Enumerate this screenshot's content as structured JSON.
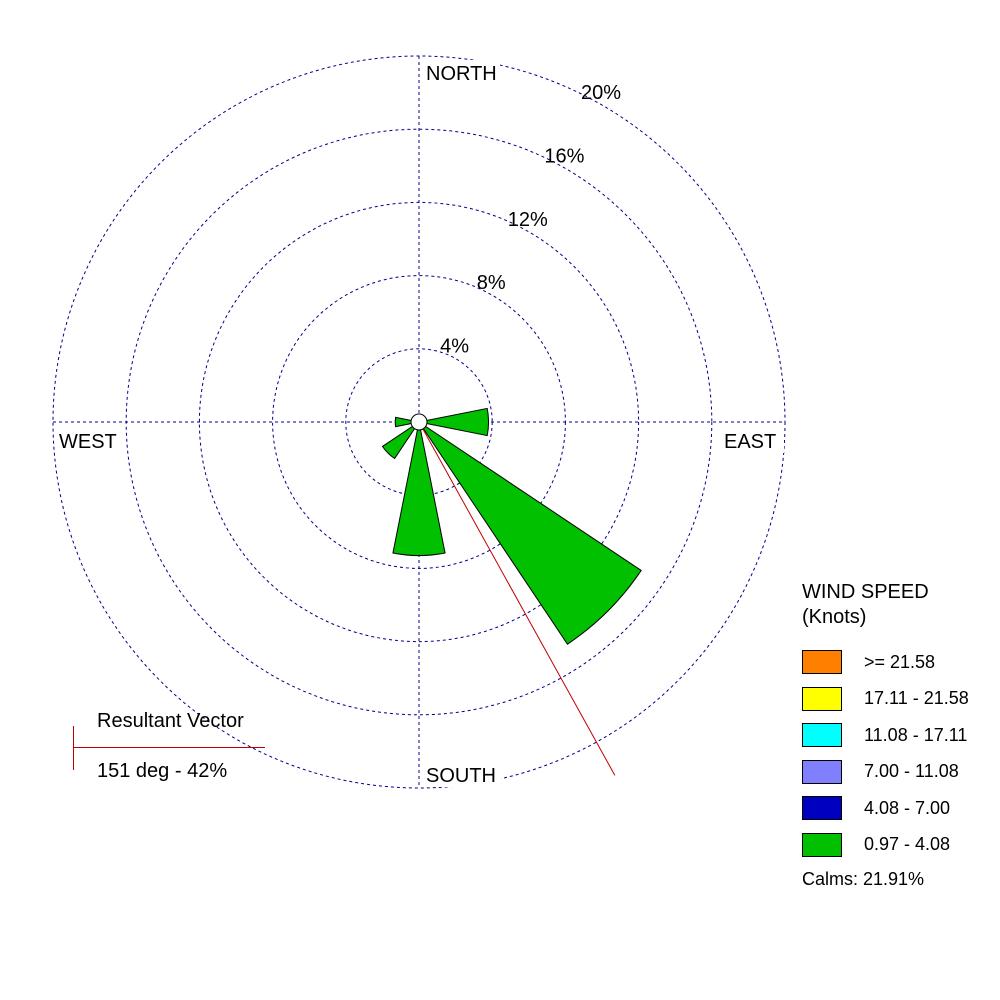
{
  "chart_data": {
    "type": "wind-rose",
    "directions": [
      "NORTH",
      "EAST",
      "SOUTH",
      "WEST"
    ],
    "radial_axis": {
      "ticks": [
        4,
        8,
        12,
        16,
        20
      ],
      "tick_labels": [
        "4%",
        "8%",
        "12%",
        "16%",
        "20%"
      ],
      "max": 20
    },
    "grid": true,
    "petals": [
      {
        "direction_deg": 90,
        "speed_class": "0.97 - 4.08",
        "percent": 3.8
      },
      {
        "direction_deg": 135,
        "speed_class": "0.97 - 4.08",
        "percent": 14.6
      },
      {
        "direction_deg": 180,
        "speed_class": "0.97 - 4.08",
        "percent": 7.3
      },
      {
        "direction_deg": 225,
        "speed_class": "0.97 - 4.08",
        "percent": 2.4
      },
      {
        "direction_deg": 270,
        "speed_class": "0.97 - 4.08",
        "percent": 1.3
      }
    ],
    "resultant_vector": {
      "direction_deg": 151,
      "percent": 42,
      "label": "Resultant Vector",
      "value_text": "151 deg - 42%"
    },
    "legend": {
      "title_line1": "WIND SPEED",
      "title_line2": "(Knots)",
      "placement": "right",
      "items": [
        {
          "label": ">= 21.58",
          "color": "#ff8000"
        },
        {
          "label": "17.11 - 21.58",
          "color": "#ffff00"
        },
        {
          "label": "11.08 - 17.11",
          "color": "#00ffff"
        },
        {
          "label": "7.00 - 11.08",
          "color": "#8080ff"
        },
        {
          "label": "4.08 - 7.00",
          "color": "#0000c0"
        },
        {
          "label": "0.97 - 4.08",
          "color": "#00c000"
        }
      ],
      "calms": "Calms: 21.91%"
    },
    "colors": {
      "grid": "#00008b",
      "vector": "#c00000"
    }
  }
}
